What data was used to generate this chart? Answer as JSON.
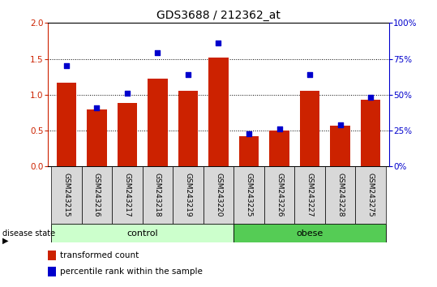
{
  "title": "GDS3688 / 212362_at",
  "samples": [
    "GSM243215",
    "GSM243216",
    "GSM243217",
    "GSM243218",
    "GSM243219",
    "GSM243220",
    "GSM243225",
    "GSM243226",
    "GSM243227",
    "GSM243228",
    "GSM243275"
  ],
  "transformed_count": [
    1.17,
    0.8,
    0.88,
    1.22,
    1.05,
    1.52,
    0.42,
    0.5,
    1.05,
    0.57,
    0.93
  ],
  "percentile_rank": [
    70,
    41,
    51,
    79,
    64,
    86,
    23,
    26,
    64,
    29,
    48
  ],
  "left_ylim": [
    0,
    2
  ],
  "right_ylim": [
    0,
    100
  ],
  "left_yticks": [
    0,
    0.5,
    1.0,
    1.5,
    2.0
  ],
  "right_yticks": [
    0,
    25,
    50,
    75,
    100
  ],
  "bar_color": "#CC2200",
  "dot_color": "#0000CC",
  "control_samples": 6,
  "obese_samples": 5,
  "control_label": "control",
  "obese_label": "obese",
  "control_color": "#CCFFCC",
  "obese_color": "#55CC55",
  "disease_state_label": "disease state",
  "legend_bar_label": "transformed count",
  "legend_dot_label": "percentile rank within the sample",
  "background_color": "#D8D8D8",
  "plot_bg_color": "#FFFFFF",
  "title_fontsize": 10,
  "label_fontsize": 6.5,
  "tick_fontsize": 7.5
}
